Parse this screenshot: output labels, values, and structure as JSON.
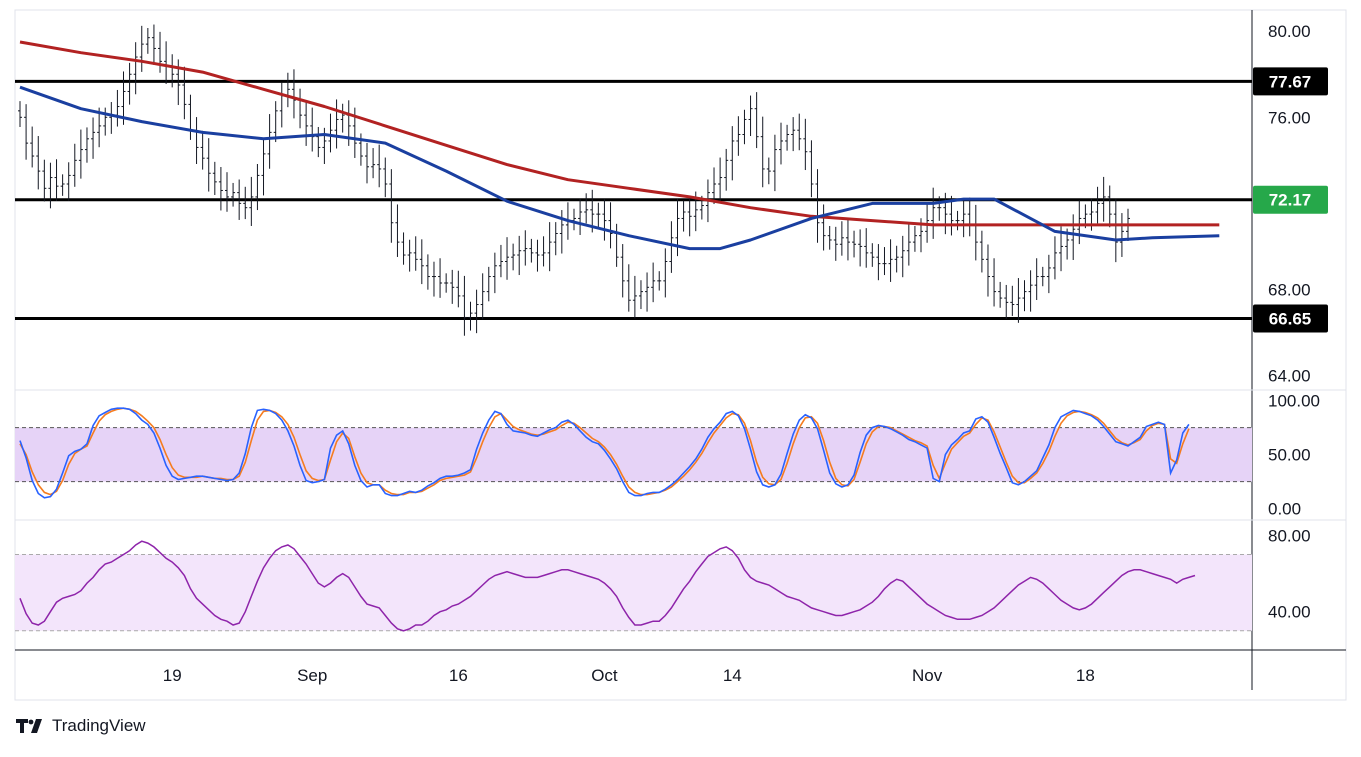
{
  "chart_data": {
    "type": "candlestick",
    "instrument_panel": {
      "y_ticks": [
        80.0,
        76.0,
        68.0,
        64.0
      ],
      "y_tick_labels": [
        "80.00",
        "76.00",
        "68.00",
        "64.00"
      ],
      "ylim": [
        63.7,
        80.8
      ],
      "horizontal_levels": [
        {
          "value": 77.67,
          "label": "77.67",
          "badge_color": "#000000"
        },
        {
          "value": 72.17,
          "label": "72.17",
          "badge_color": "#26a84a"
        },
        {
          "value": 66.65,
          "label": "66.65",
          "badge_color": "#000000"
        }
      ],
      "moving_averages": [
        {
          "color": "#b22222",
          "points": [
            [
              0,
              79.5
            ],
            [
              10,
              79.0
            ],
            [
              20,
              78.6
            ],
            [
              30,
              78.1
            ],
            [
              40,
              77.3
            ],
            [
              50,
              76.5
            ],
            [
              60,
              75.6
            ],
            [
              70,
              74.7
            ],
            [
              80,
              73.8
            ],
            [
              90,
              73.1
            ],
            [
              100,
              72.7
            ],
            [
              110,
              72.3
            ],
            [
              120,
              71.8
            ],
            [
              130,
              71.4
            ],
            [
              140,
              71.2
            ],
            [
              150,
              71.0
            ],
            [
              160,
              71.0
            ],
            [
              170,
              71.0
            ],
            [
              180,
              71.0
            ],
            [
              190,
              71.0
            ],
            [
              197,
              71.0
            ]
          ]
        },
        {
          "color": "#1a3fa0",
          "points": [
            [
              0,
              77.4
            ],
            [
              10,
              76.4
            ],
            [
              20,
              75.8
            ],
            [
              30,
              75.3
            ],
            [
              40,
              75.0
            ],
            [
              50,
              75.2
            ],
            [
              60,
              74.8
            ],
            [
              70,
              73.5
            ],
            [
              80,
              72.1
            ],
            [
              90,
              71.2
            ],
            [
              100,
              70.5
            ],
            [
              110,
              69.9
            ],
            [
              115,
              69.9
            ],
            [
              120,
              70.3
            ],
            [
              130,
              71.3
            ],
            [
              140,
              72.0
            ],
            [
              150,
              72.0
            ],
            [
              155,
              72.2
            ],
            [
              160,
              72.2
            ],
            [
              170,
              70.7
            ],
            [
              180,
              70.3
            ],
            [
              186,
              70.4
            ],
            [
              197,
              70.5
            ]
          ]
        }
      ],
      "candles_close": [
        76.0,
        74.8,
        74.2,
        73.5,
        72.7,
        73.2,
        72.8,
        72.9,
        73.3,
        74.0,
        74.5,
        75.0,
        75.3,
        75.6,
        76.0,
        76.1,
        76.5,
        77.2,
        78.0,
        78.8,
        79.4,
        79.7,
        79.2,
        78.6,
        78.4,
        78.0,
        77.5,
        76.6,
        75.4,
        74.6,
        74.1,
        73.4,
        73.0,
        72.6,
        72.3,
        72.5,
        72.0,
        71.8,
        72.3,
        73.3,
        74.3,
        75.3,
        76.3,
        77.0,
        77.3,
        76.8,
        76.1,
        75.6,
        75.1,
        74.6,
        74.9,
        75.4,
        75.9,
        76.1,
        75.6,
        74.8,
        74.2,
        73.7,
        73.8,
        73.6,
        72.9,
        71.1,
        70.2,
        69.6,
        69.7,
        69.4,
        69.1,
        68.6,
        68.6,
        68.3,
        68.3,
        68.1,
        67.7,
        66.7,
        66.9,
        67.3,
        67.9,
        68.6,
        69.1,
        69.3,
        69.5,
        69.6,
        69.8,
        69.9,
        69.7,
        69.6,
        69.7,
        70.2,
        70.6,
        71.0,
        71.2,
        71.3,
        71.6,
        71.7,
        71.5,
        71.5,
        71.2,
        70.6,
        69.5,
        68.4,
        67.5,
        67.7,
        67.9,
        68.1,
        68.4,
        68.4,
        69.3,
        70.4,
        71.3,
        71.6,
        71.4,
        71.7,
        71.9,
        72.5,
        72.9,
        73.2,
        74.0,
        74.9,
        75.2,
        75.9,
        76.4,
        75.1,
        73.6,
        73.5,
        74.5,
        74.9,
        75.2,
        75.4,
        75.0,
        74.4,
        72.9,
        71.1,
        70.5,
        70.3,
        70.1,
        70.4,
        70.2,
        70.1,
        70.0,
        69.7,
        69.5,
        69.2,
        69.2,
        69.4,
        69.5,
        69.8,
        70.2,
        70.5,
        70.7,
        71.2,
        71.8,
        71.8,
        71.5,
        71.2,
        71.2,
        71.5,
        71.0,
        70.2,
        69.4,
        68.6,
        67.9,
        67.6,
        67.4,
        67.3,
        67.6,
        67.9,
        68.2,
        68.6,
        68.6,
        69.0,
        69.7,
        70.0,
        70.3,
        70.8,
        71.3,
        71.5,
        71.6,
        72.0,
        72.3,
        71.5,
        70.2,
        70.7,
        71.3
      ],
      "last_candle_index": 197
    },
    "stochastic_panel": {
      "y_tick_labels": [
        "100.00",
        "50.00",
        "0.00"
      ],
      "y_ticks": [
        100,
        50,
        0
      ],
      "ylim": [
        -5,
        108
      ],
      "band": [
        25,
        75
      ],
      "k_color": "#2962ff",
      "d_color": "#f57c1f",
      "k_values": [
        63,
        47,
        26,
        14,
        10,
        11,
        18,
        33,
        49,
        53,
        55,
        60,
        77,
        86,
        89,
        92,
        93,
        93,
        92,
        88,
        82,
        78,
        70,
        56,
        40,
        30,
        27,
        28,
        29,
        30,
        30,
        29,
        28,
        27,
        26,
        27,
        33,
        51,
        75,
        91,
        92,
        91,
        88,
        82,
        72,
        58,
        40,
        26,
        24,
        25,
        27,
        56,
        68,
        72,
        60,
        40,
        26,
        20,
        22,
        22,
        14,
        12,
        12,
        14,
        16,
        15,
        17,
        21,
        24,
        28,
        30,
        30,
        31,
        33,
        36,
        55,
        70,
        82,
        90,
        88,
        78,
        72,
        71,
        70,
        68,
        67,
        70,
        73,
        75,
        80,
        82,
        78,
        72,
        66,
        62,
        60,
        54,
        46,
        37,
        25,
        15,
        12,
        12,
        14,
        15,
        15,
        18,
        22,
        27,
        33,
        39,
        46,
        55,
        66,
        74,
        80,
        88,
        90,
        86,
        74,
        55,
        34,
        22,
        20,
        22,
        32,
        51,
        69,
        82,
        87,
        84,
        74,
        54,
        33,
        23,
        20,
        22,
        31,
        52,
        68,
        75,
        77,
        76,
        74,
        71,
        68,
        64,
        62,
        59,
        56,
        28,
        25,
        50,
        59,
        64,
        70,
        72,
        83,
        85,
        80,
        66,
        51,
        38,
        24,
        22,
        25,
        30,
        35,
        47,
        59,
        75,
        85,
        88,
        91,
        90,
        88,
        86,
        82,
        76,
        69,
        62,
        60,
        58,
        62,
        66,
        76,
        78,
        80,
        78,
        33,
        45,
        70,
        78
      ],
      "d_values": [
        60,
        50,
        34,
        22,
        15,
        13,
        16,
        26,
        41,
        51,
        55,
        58,
        70,
        81,
        87,
        90,
        92,
        93,
        92,
        90,
        86,
        81,
        75,
        64,
        50,
        38,
        31,
        29,
        29,
        29,
        30,
        29,
        28,
        28,
        27,
        27,
        30,
        43,
        63,
        82,
        90,
        91,
        89,
        85,
        78,
        66,
        50,
        35,
        28,
        26,
        27,
        45,
        62,
        70,
        65,
        48,
        33,
        24,
        22,
        22,
        17,
        14,
        13,
        13,
        15,
        15,
        16,
        19,
        22,
        26,
        28,
        29,
        30,
        31,
        34,
        47,
        62,
        75,
        85,
        88,
        82,
        76,
        73,
        71,
        69,
        68,
        69,
        71,
        73,
        77,
        80,
        79,
        75,
        70,
        65,
        62,
        57,
        50,
        41,
        30,
        20,
        15,
        13,
        13,
        14,
        15,
        17,
        20,
        25,
        30,
        36,
        43,
        51,
        61,
        70,
        77,
        84,
        88,
        87,
        79,
        63,
        43,
        29,
        23,
        22,
        27,
        42,
        60,
        75,
        84,
        85,
        79,
        63,
        43,
        28,
        22,
        21,
        27,
        43,
        60,
        71,
        76,
        76,
        75,
        72,
        69,
        66,
        63,
        61,
        58,
        40,
        28,
        42,
        55,
        61,
        67,
        70,
        78,
        84,
        82,
        71,
        57,
        43,
        30,
        24,
        24,
        28,
        33,
        42,
        53,
        67,
        79,
        86,
        89,
        90,
        89,
        87,
        84,
        79,
        72,
        65,
        61,
        59,
        61,
        64,
        72,
        77,
        79,
        78,
        46,
        42,
        60,
        74
      ]
    },
    "rsi_panel": {
      "y_tick_labels": [
        "80.00",
        "40.00"
      ],
      "y_ticks": [
        80,
        40
      ],
      "ylim": [
        22,
        86
      ],
      "band": [
        30,
        70
      ],
      "color": "#8e24aa",
      "values": [
        47,
        39,
        34,
        33,
        35,
        40,
        45,
        47,
        48,
        49,
        51,
        55,
        58,
        62,
        65,
        66,
        68,
        70,
        72,
        75,
        77,
        76,
        74,
        71,
        68,
        66,
        63,
        59,
        52,
        47,
        44,
        41,
        38,
        36,
        35,
        33,
        34,
        40,
        48,
        56,
        63,
        68,
        72,
        74,
        75,
        73,
        69,
        65,
        60,
        55,
        53,
        55,
        58,
        60,
        58,
        53,
        48,
        44,
        43,
        42,
        38,
        34,
        31,
        30,
        31,
        33,
        33,
        35,
        38,
        40,
        41,
        43,
        44,
        46,
        48,
        51,
        54,
        57,
        59,
        60,
        61,
        60,
        59,
        58,
        58,
        58,
        59,
        60,
        61,
        62,
        62,
        61,
        60,
        59,
        58,
        57,
        55,
        52,
        48,
        42,
        37,
        33,
        33,
        34,
        35,
        35,
        38,
        42,
        47,
        52,
        56,
        61,
        65,
        69,
        71,
        73,
        74,
        72,
        68,
        62,
        58,
        56,
        55,
        54,
        52,
        50,
        48,
        47,
        46,
        44,
        42,
        41,
        40,
        39,
        38,
        38,
        39,
        40,
        41,
        43,
        45,
        48,
        52,
        55,
        57,
        56,
        53,
        50,
        47,
        44,
        42,
        40,
        38,
        37,
        36,
        36,
        36,
        37,
        38,
        40,
        42,
        45,
        48,
        51,
        54,
        56,
        58,
        57,
        55,
        52,
        49,
        46,
        44,
        42,
        41,
        42,
        44,
        47,
        50,
        53,
        56,
        59,
        61,
        62,
        62,
        61,
        60,
        59,
        58,
        57,
        55,
        57,
        58,
        59
      ]
    },
    "x_tick_labels": [
      "19",
      "Sep",
      "16",
      "Oct",
      "14",
      "Nov",
      "18"
    ],
    "x_tick_indices": [
      25,
      48,
      72,
      96,
      117,
      149,
      175
    ]
  },
  "brand": {
    "name": "TradingView"
  }
}
